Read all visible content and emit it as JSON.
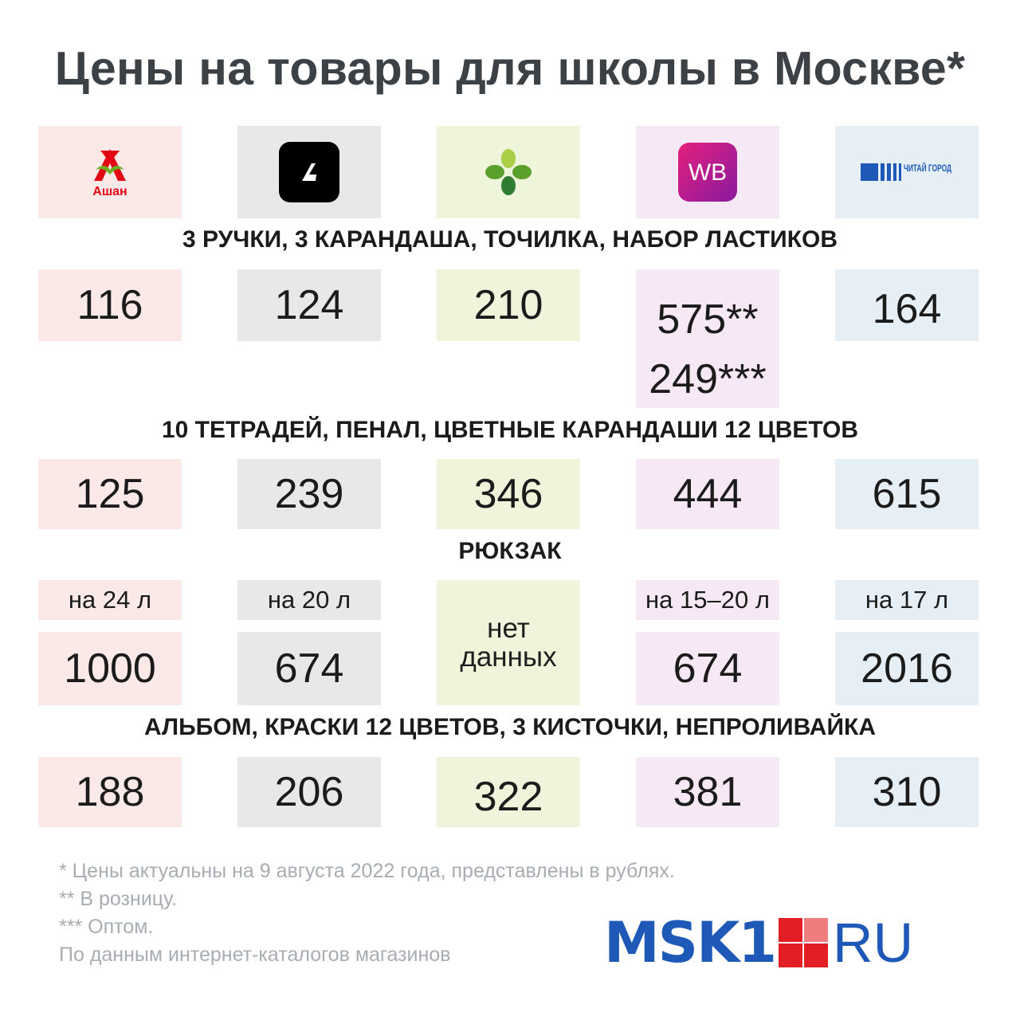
{
  "title": "Цены на товары для школы в Москве*",
  "stores": [
    {
      "logo": "auchan-logo",
      "label": "Ашан",
      "color": "#e30613"
    },
    {
      "logo": "lamoda-logo",
      "label": "",
      "color": "#000000"
    },
    {
      "logo": "perekrestok-logo",
      "label": "",
      "color": "#5aa02c"
    },
    {
      "logo": "wildberries-logo",
      "label": "WB",
      "color": "#b8168f"
    },
    {
      "logo": "chitai-gorod-logo",
      "label": "ЧИТАЙ ГОРОД",
      "color": "#1e59b8"
    }
  ],
  "sections": [
    {
      "title": "3 РУЧКИ, 3 КАРАНДАША, ТОЧИЛКА, НАБОР ЛАСТИКОВ",
      "prices": [
        "116",
        "124",
        "210",
        "",
        "164"
      ],
      "wb_prices": [
        "575**",
        "249***"
      ]
    },
    {
      "title": "10 ТЕТРАДЕЙ, ПЕНАЛ, ЦВЕТНЫЕ КАРАНДАШИ 12 ЦВЕТОВ",
      "prices": [
        "125",
        "239",
        "346",
        "444",
        "615"
      ]
    },
    {
      "title": "РЮКЗАК",
      "volumes": [
        "на 24 л",
        "на 20 л",
        "",
        "на 15–20 л",
        "на 17 л"
      ],
      "prices": [
        "1000",
        "674",
        "",
        "674",
        "2016"
      ],
      "no_data": [
        "нет",
        "данных"
      ]
    },
    {
      "title": "АЛЬБОМ, КРАСКИ 12 ЦВЕТОВ, 3 КИСТОЧКИ, НЕПРОЛИВАЙКА",
      "prices": [
        "188",
        "206",
        "322",
        "381",
        "310"
      ]
    }
  ],
  "notes": [
    "* Цены актуальны на 9 августа 2022 года, представлены в рублях.",
    "** В розницу.",
    "*** Оптом.",
    "По данным интернет-каталогов магазинов"
  ],
  "brand": {
    "name": "MSK1",
    "suffix": "RU",
    "color": "#1e59b8",
    "accent": "#e31e24"
  }
}
